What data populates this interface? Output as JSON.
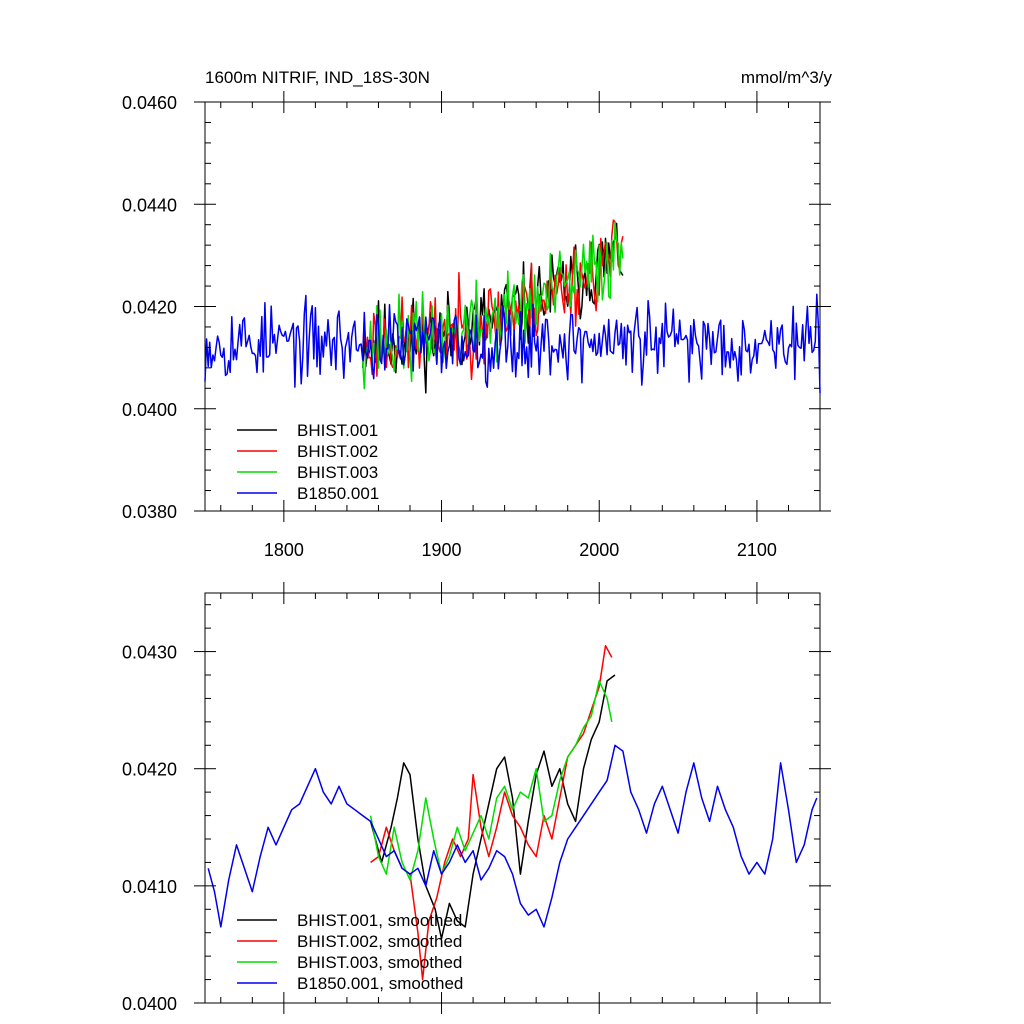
{
  "chart_data": [
    {
      "type": "line",
      "title": "1600m NITRIF, IND_18S-30N",
      "units": "mmol/m^3/y",
      "xlim": [
        1750,
        2140
      ],
      "ylim": [
        0.038,
        0.046
      ],
      "x_ticks": [
        1800,
        1900,
        2000,
        2100
      ],
      "x_tick_labels": [
        "1800",
        "1900",
        "2000",
        "2100"
      ],
      "y_ticks": [
        0.038,
        0.04,
        0.042,
        0.044,
        0.046
      ],
      "y_tick_labels": [
        "0.0380",
        "0.0400",
        "0.0420",
        "0.0440",
        "0.0460"
      ],
      "legend_position": "bottom-left",
      "series": [
        {
          "name": "BHIST.001",
          "color": "#000000",
          "x_start": 1850,
          "x_end": 2015,
          "seed": 11,
          "base": 0.0413,
          "trend": 0.0018,
          "noise": 0.0012
        },
        {
          "name": "BHIST.002",
          "color": "#ff0000",
          "x_start": 1850,
          "x_end": 2015,
          "seed": 23,
          "base": 0.0413,
          "trend": 0.0018,
          "noise": 0.0012
        },
        {
          "name": "BHIST.003",
          "color": "#00dd00",
          "x_start": 1850,
          "x_end": 2015,
          "seed": 37,
          "base": 0.0413,
          "trend": 0.0018,
          "noise": 0.0012
        },
        {
          "name": "B1850.001",
          "color": "#0000ee",
          "x_start": 1750,
          "x_end": 2140,
          "seed": 53,
          "base": 0.0413,
          "trend": 0.0,
          "noise": 0.0011
        }
      ]
    },
    {
      "type": "line",
      "xlim": [
        1750,
        2140
      ],
      "ylim": [
        0.04,
        0.0435
      ],
      "x_ticks": [
        1800,
        1900,
        2000,
        2100
      ],
      "y_ticks": [
        0.04,
        0.041,
        0.042,
        0.043
      ],
      "y_tick_labels": [
        "0.0400",
        "0.0410",
        "0.0420",
        "0.0430"
      ],
      "legend_position": "bottom-left",
      "series": [
        {
          "name": "BHIST.001, smoothed",
          "color": "#000000",
          "points": [
            [
              1855,
              0.04155
            ],
            [
              1862,
              0.0412
            ],
            [
              1868,
              0.0415
            ],
            [
              1872,
              0.04175
            ],
            [
              1876,
              0.04205
            ],
            [
              1880,
              0.04195
            ],
            [
              1885,
              0.0414
            ],
            [
              1890,
              0.041
            ],
            [
              1896,
              0.0408
            ],
            [
              1900,
              0.04055
            ],
            [
              1905,
              0.04085
            ],
            [
              1910,
              0.0407
            ],
            [
              1915,
              0.04065
            ],
            [
              1920,
              0.0411
            ],
            [
              1925,
              0.0414
            ],
            [
              1930,
              0.0417
            ],
            [
              1935,
              0.042
            ],
            [
              1940,
              0.0421
            ],
            [
              1945,
              0.04175
            ],
            [
              1950,
              0.0411
            ],
            [
              1955,
              0.04155
            ],
            [
              1960,
              0.04195
            ],
            [
              1965,
              0.04215
            ],
            [
              1970,
              0.04185
            ],
            [
              1975,
              0.042
            ],
            [
              1980,
              0.0417
            ],
            [
              1985,
              0.04155
            ],
            [
              1990,
              0.042
            ],
            [
              1995,
              0.04225
            ],
            [
              2000,
              0.0424
            ],
            [
              2005,
              0.04275
            ],
            [
              2010,
              0.0428
            ]
          ]
        },
        {
          "name": "BHIST.002, smoothed",
          "color": "#ff0000",
          "points": [
            [
              1855,
              0.0412
            ],
            [
              1860,
              0.04125
            ],
            [
              1865,
              0.0415
            ],
            [
              1870,
              0.0413
            ],
            [
              1875,
              0.04115
            ],
            [
              1880,
              0.0411
            ],
            [
              1885,
              0.0406
            ],
            [
              1888,
              0.0402
            ],
            [
              1892,
              0.0407
            ],
            [
              1897,
              0.0409
            ],
            [
              1902,
              0.0412
            ],
            [
              1907,
              0.0414
            ],
            [
              1912,
              0.04125
            ],
            [
              1917,
              0.0414
            ],
            [
              1920,
              0.04195
            ],
            [
              1925,
              0.0415
            ],
            [
              1930,
              0.04125
            ],
            [
              1935,
              0.0415
            ],
            [
              1940,
              0.0418
            ],
            [
              1945,
              0.0416
            ],
            [
              1950,
              0.0415
            ],
            [
              1955,
              0.04135
            ],
            [
              1960,
              0.04125
            ],
            [
              1965,
              0.0416
            ],
            [
              1970,
              0.0414
            ],
            [
              1975,
              0.04175
            ],
            [
              1980,
              0.0421
            ],
            [
              1985,
              0.0422
            ],
            [
              1990,
              0.0423
            ],
            [
              1995,
              0.0425
            ],
            [
              2000,
              0.0427
            ],
            [
              2004,
              0.04305
            ],
            [
              2008,
              0.04295
            ]
          ]
        },
        {
          "name": "BHIST.003, smoothed",
          "color": "#00dd00",
          "points": [
            [
              1855,
              0.0416
            ],
            [
              1860,
              0.04125
            ],
            [
              1865,
              0.0411
            ],
            [
              1870,
              0.0415
            ],
            [
              1875,
              0.0412
            ],
            [
              1880,
              0.04105
            ],
            [
              1885,
              0.0413
            ],
            [
              1890,
              0.04175
            ],
            [
              1895,
              0.0414
            ],
            [
              1900,
              0.0411
            ],
            [
              1905,
              0.04125
            ],
            [
              1910,
              0.0415
            ],
            [
              1915,
              0.0413
            ],
            [
              1920,
              0.04145
            ],
            [
              1925,
              0.0416
            ],
            [
              1930,
              0.0414
            ],
            [
              1935,
              0.04175
            ],
            [
              1940,
              0.04185
            ],
            [
              1945,
              0.04165
            ],
            [
              1950,
              0.0418
            ],
            [
              1955,
              0.04175
            ],
            [
              1960,
              0.042
            ],
            [
              1965,
              0.04155
            ],
            [
              1970,
              0.0416
            ],
            [
              1975,
              0.0419
            ],
            [
              1980,
              0.0421
            ],
            [
              1985,
              0.0422
            ],
            [
              1990,
              0.04235
            ],
            [
              1995,
              0.04245
            ],
            [
              2000,
              0.04275
            ],
            [
              2005,
              0.0426
            ],
            [
              2008,
              0.0424
            ]
          ]
        },
        {
          "name": "B1850.001, smoothed",
          "color": "#0000ee",
          "points": [
            [
              1752,
              0.04115
            ],
            [
              1756,
              0.04095
            ],
            [
              1760,
              0.04065
            ],
            [
              1765,
              0.04105
            ],
            [
              1770,
              0.04135
            ],
            [
              1775,
              0.04115
            ],
            [
              1780,
              0.04095
            ],
            [
              1785,
              0.04125
            ],
            [
              1790,
              0.0415
            ],
            [
              1795,
              0.04135
            ],
            [
              1800,
              0.0415
            ],
            [
              1805,
              0.04165
            ],
            [
              1810,
              0.0417
            ],
            [
              1815,
              0.04185
            ],
            [
              1820,
              0.042
            ],
            [
              1825,
              0.0418
            ],
            [
              1830,
              0.0417
            ],
            [
              1835,
              0.04185
            ],
            [
              1840,
              0.0417
            ],
            [
              1845,
              0.04165
            ],
            [
              1850,
              0.0416
            ],
            [
              1855,
              0.04155
            ],
            [
              1860,
              0.0414
            ],
            [
              1865,
              0.04125
            ],
            [
              1870,
              0.0413
            ],
            [
              1875,
              0.04115
            ],
            [
              1880,
              0.0411
            ],
            [
              1885,
              0.04115
            ],
            [
              1890,
              0.041
            ],
            [
              1895,
              0.0413
            ],
            [
              1900,
              0.0411
            ],
            [
              1905,
              0.0412
            ],
            [
              1910,
              0.04135
            ],
            [
              1915,
              0.0412
            ],
            [
              1920,
              0.0413
            ],
            [
              1925,
              0.04105
            ],
            [
              1930,
              0.04115
            ],
            [
              1935,
              0.0413
            ],
            [
              1940,
              0.04125
            ],
            [
              1945,
              0.0411
            ],
            [
              1950,
              0.04085
            ],
            [
              1955,
              0.04075
            ],
            [
              1960,
              0.0408
            ],
            [
              1965,
              0.04065
            ],
            [
              1970,
              0.0409
            ],
            [
              1975,
              0.0412
            ],
            [
              1980,
              0.0414
            ],
            [
              1985,
              0.0415
            ],
            [
              1990,
              0.0416
            ],
            [
              1995,
              0.0417
            ],
            [
              2000,
              0.0418
            ],
            [
              2005,
              0.0419
            ],
            [
              2010,
              0.0422
            ],
            [
              2015,
              0.04215
            ],
            [
              2020,
              0.0418
            ],
            [
              2025,
              0.04165
            ],
            [
              2030,
              0.04145
            ],
            [
              2035,
              0.0417
            ],
            [
              2040,
              0.04185
            ],
            [
              2045,
              0.04165
            ],
            [
              2050,
              0.04145
            ],
            [
              2055,
              0.0418
            ],
            [
              2060,
              0.04205
            ],
            [
              2065,
              0.04175
            ],
            [
              2070,
              0.04155
            ],
            [
              2075,
              0.04185
            ],
            [
              2080,
              0.04165
            ],
            [
              2085,
              0.0415
            ],
            [
              2090,
              0.04125
            ],
            [
              2095,
              0.0411
            ],
            [
              2100,
              0.0412
            ],
            [
              2105,
              0.0411
            ],
            [
              2110,
              0.0414
            ],
            [
              2115,
              0.04205
            ],
            [
              2120,
              0.04165
            ],
            [
              2125,
              0.0412
            ],
            [
              2130,
              0.04135
            ],
            [
              2135,
              0.04165
            ],
            [
              2138,
              0.04175
            ]
          ]
        }
      ]
    }
  ]
}
